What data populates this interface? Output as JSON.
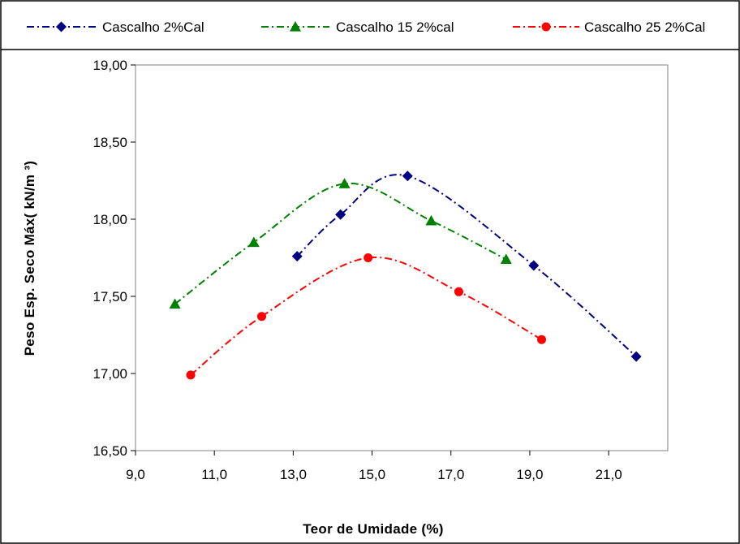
{
  "chart_data": {
    "type": "line",
    "xlabel": "Teor de Umidade (%)",
    "ylabel": "Peso Esp. Seco Máx( kN/m ³)",
    "xlim": [
      9.0,
      22.5
    ],
    "ylim": [
      16.5,
      19.0
    ],
    "x_ticks": [
      "9,0",
      "11,0",
      "13,0",
      "15,0",
      "17,0",
      "19,0",
      "21,0"
    ],
    "y_ticks": [
      "16,50",
      "17,00",
      "17,50",
      "18,00",
      "18,50",
      "19,00"
    ],
    "grid": false,
    "legend_position": "top",
    "series": [
      {
        "name": "Cascalho 2%Cal",
        "color": "#000080",
        "marker": "diamond",
        "line_style": "dash-dot",
        "points": [
          {
            "x": 13.1,
            "y": 17.76
          },
          {
            "x": 14.2,
            "y": 18.03
          },
          {
            "x": 15.9,
            "y": 18.28
          },
          {
            "x": 19.1,
            "y": 17.7
          },
          {
            "x": 21.7,
            "y": 17.11
          }
        ]
      },
      {
        "name": "Cascalho 15 2%cal",
        "color": "#008000",
        "marker": "triangle",
        "line_style": "dash-dot",
        "points": [
          {
            "x": 10.0,
            "y": 17.45
          },
          {
            "x": 12.0,
            "y": 17.85
          },
          {
            "x": 14.3,
            "y": 18.23
          },
          {
            "x": 16.5,
            "y": 17.99
          },
          {
            "x": 18.4,
            "y": 17.74
          }
        ]
      },
      {
        "name": "Cascalho 25 2%Cal",
        "color": "#ff0000",
        "marker": "circle",
        "line_style": "dash-dot",
        "points": [
          {
            "x": 10.4,
            "y": 16.99
          },
          {
            "x": 12.2,
            "y": 17.37
          },
          {
            "x": 14.9,
            "y": 17.75
          },
          {
            "x": 17.2,
            "y": 17.53
          },
          {
            "x": 19.3,
            "y": 17.22
          }
        ]
      }
    ]
  }
}
